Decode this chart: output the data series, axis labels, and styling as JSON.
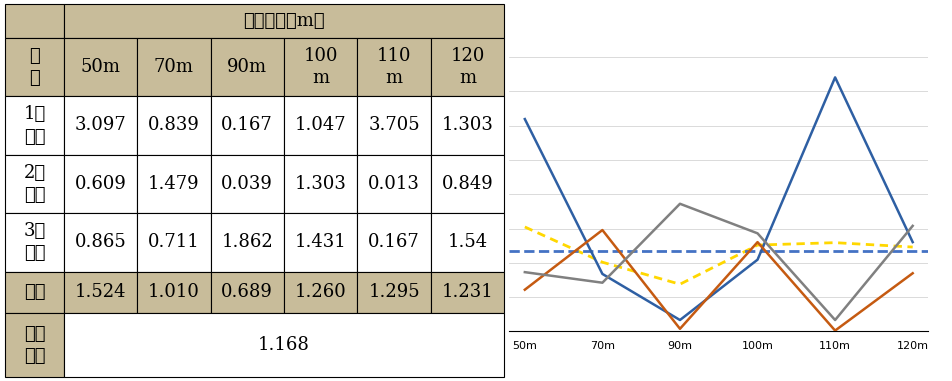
{
  "x_labels": [
    "50m",
    "70m",
    "90m",
    "100m",
    "110m",
    "120m"
  ],
  "x_positions": [
    0,
    1,
    2,
    3,
    4,
    5
  ],
  "series_1": [
    3.097,
    0.839,
    0.167,
    1.047,
    3.705,
    1.303
  ],
  "series_2": [
    0.609,
    1.479,
    0.039,
    1.303,
    0.013,
    0.849
  ],
  "series_3": [
    0.865,
    0.711,
    1.862,
    1.431,
    0.167,
    1.54
  ],
  "avg": [
    1.524,
    1.01,
    0.689,
    1.26,
    1.295,
    1.231
  ],
  "total_avg": 1.168,
  "color_1": "#2E5FA3",
  "color_2": "#C55A11",
  "color_3": "#808080",
  "color_avg": "#FFD700",
  "color_total": "#4472C4",
  "ylim_min": 0,
  "ylim_max": 4,
  "yticks": [
    0,
    0.5,
    1,
    1.5,
    2,
    2.5,
    3,
    3.5,
    4
  ],
  "legend_1": "1차측정",
  "legend_2": "2차측정",
  "legend_3": "3차측정",
  "legend_avg": "평균",
  "legend_total": "전체평균",
  "header_bg": "#C8BC9A",
  "alt_row_bg": "#D9D3B8",
  "table_font_size": 13,
  "chart_area_color": "#FFFFFF"
}
